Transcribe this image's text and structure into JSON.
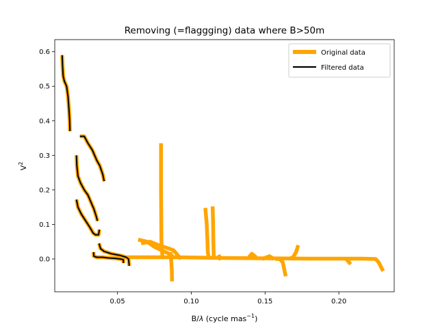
{
  "chart_data": {
    "type": "line",
    "title": "Removing (=flaggging) data where  B>50m",
    "xlabel_main": "B/",
    "xlabel_lambda": "λ",
    "xlabel_unit": " (cycle mas",
    "xlabel_exp": "−1",
    "xlabel_close": ")",
    "ylabel_main": "V",
    "ylabel_exp": "2",
    "xlim": [
      0.0075,
      0.2375
    ],
    "ylim": [
      -0.095,
      0.635
    ],
    "xticks": [
      0.05,
      0.1,
      0.15,
      0.2
    ],
    "xtick_labels": [
      "0.05",
      "0.10",
      "0.15",
      "0.20"
    ],
    "yticks": [
      0.0,
      0.1,
      0.2,
      0.3,
      0.4,
      0.5,
      0.6
    ],
    "ytick_labels": [
      "0.0",
      "0.1",
      "0.2",
      "0.3",
      "0.4",
      "0.5",
      "0.6"
    ],
    "legend_position": "top-right",
    "colors": {
      "original": "#ffa500",
      "filtered": "#000000"
    },
    "series": [
      {
        "name": "Original data",
        "segments": [
          [
            [
              0.0125,
              0.59
            ],
            [
              0.0128,
              0.56
            ],
            [
              0.0132,
              0.53
            ],
            [
              0.014,
              0.515
            ],
            [
              0.0155,
              0.5
            ],
            [
              0.0165,
              0.47
            ],
            [
              0.0172,
              0.43
            ],
            [
              0.0176,
              0.4
            ],
            [
              0.0178,
              0.37
            ]
          ],
          [
            [
              0.0245,
              0.355
            ],
            [
              0.0275,
              0.355
            ],
            [
              0.03,
              0.335
            ],
            [
              0.033,
              0.315
            ],
            [
              0.036,
              0.285
            ],
            [
              0.038,
              0.27
            ],
            [
              0.04,
              0.245
            ],
            [
              0.041,
              0.225
            ]
          ],
          [
            [
              0.0222,
              0.3
            ],
            [
              0.0225,
              0.27
            ],
            [
              0.0232,
              0.24
            ],
            [
              0.025,
              0.22
            ],
            [
              0.0275,
              0.2
            ],
            [
              0.03,
              0.185
            ],
            [
              0.032,
              0.165
            ],
            [
              0.034,
              0.145
            ],
            [
              0.0355,
              0.125
            ],
            [
              0.0365,
              0.11
            ]
          ],
          [
            [
              0.0222,
              0.172
            ],
            [
              0.0232,
              0.15
            ],
            [
              0.0255,
              0.13
            ],
            [
              0.0285,
              0.11
            ],
            [
              0.0315,
              0.09
            ],
            [
              0.0335,
              0.075
            ],
            [
              0.035,
              0.07
            ],
            [
              0.0372,
              0.07
            ],
            [
              0.0378,
              0.085
            ]
          ],
          [
            [
              0.0375,
              0.045
            ],
            [
              0.0385,
              0.03
            ],
            [
              0.041,
              0.022
            ],
            [
              0.046,
              0.015
            ],
            [
              0.052,
              0.01
            ],
            [
              0.056,
              0.005
            ],
            [
              0.0575,
              0.0
            ],
            [
              0.058,
              -0.02
            ]
          ],
          [
            [
              0.0338,
              0.02
            ],
            [
              0.034,
              0.008
            ],
            [
              0.036,
              0.005
            ],
            [
              0.04,
              0.005
            ],
            [
              0.044,
              0.003
            ],
            [
              0.048,
              0.002
            ],
            [
              0.052,
              0.0
            ],
            [
              0.054,
              -0.002
            ],
            [
              0.054,
              -0.012
            ]
          ],
          [
            [
              0.05,
              0.005
            ],
            [
              0.07,
              0.005
            ],
            [
              0.09,
              0.005
            ],
            [
              0.12,
              0.003
            ],
            [
              0.15,
              0.002
            ],
            [
              0.18,
              0.001
            ],
            [
              0.2,
              0.001
            ],
            [
              0.215,
              0.001
            ],
            [
              0.225,
              0.0
            ],
            [
              0.227,
              -0.01
            ],
            [
              0.23,
              -0.035
            ]
          ],
          [
            [
              0.064,
              0.056
            ],
            [
              0.07,
              0.05
            ],
            [
              0.075,
              0.035
            ],
            [
              0.08,
              0.025
            ],
            [
              0.085,
              0.015
            ],
            [
              0.088,
              0.005
            ]
          ],
          [
            [
              0.066,
              0.045
            ],
            [
              0.072,
              0.05
            ],
            [
              0.078,
              0.04
            ],
            [
              0.085,
              0.03
            ],
            [
              0.088,
              0.025
            ],
            [
              0.093,
              0.0
            ]
          ],
          [
            [
              0.0795,
              0.335
            ],
            [
              0.0795,
              0.2
            ],
            [
              0.0798,
              0.05
            ],
            [
              0.0805,
              0.003
            ]
          ],
          [
            [
              0.086,
              0.02
            ],
            [
              0.0868,
              -0.03
            ],
            [
              0.087,
              -0.065
            ]
          ],
          [
            [
              0.1095,
              0.148
            ],
            [
              0.1105,
              0.1
            ],
            [
              0.111,
              0.05
            ],
            [
              0.1112,
              0.02
            ],
            [
              0.112,
              0.0
            ]
          ],
          [
            [
              0.1145,
              0.152
            ],
            [
              0.1148,
              0.1
            ],
            [
              0.115,
              0.05
            ],
            [
              0.1152,
              0.01
            ],
            [
              0.1158,
              0.0
            ]
          ],
          [
            [
              0.1185,
              0.012
            ],
            [
              0.12,
              -0.003
            ]
          ],
          [
            [
              0.139,
              0.005
            ],
            [
              0.141,
              0.015
            ],
            [
              0.144,
              0.005
            ]
          ],
          [
            [
              0.148,
              0.0
            ],
            [
              0.153,
              0.008
            ],
            [
              0.156,
              0.0
            ]
          ],
          [
            [
              0.157,
              0.0
            ],
            [
              0.16,
              0.0
            ],
            [
              0.162,
              -0.01
            ],
            [
              0.163,
              -0.03
            ],
            [
              0.164,
              -0.05
            ]
          ],
          [
            [
              0.166,
              0.0
            ],
            [
              0.169,
              0.005
            ],
            [
              0.171,
              0.02
            ],
            [
              0.1725,
              0.04
            ]
          ],
          [
            [
              0.205,
              0.0
            ],
            [
              0.208,
              -0.015
            ]
          ]
        ]
      },
      {
        "name": "Filtered data",
        "segments": [
          [
            [
              0.0125,
              0.59
            ],
            [
              0.0128,
              0.56
            ],
            [
              0.0132,
              0.53
            ],
            [
              0.014,
              0.515
            ],
            [
              0.0155,
              0.5
            ],
            [
              0.0165,
              0.47
            ],
            [
              0.0172,
              0.43
            ],
            [
              0.0176,
              0.4
            ],
            [
              0.0178,
              0.37
            ]
          ],
          [
            [
              0.0245,
              0.355
            ],
            [
              0.0275,
              0.355
            ],
            [
              0.03,
              0.335
            ],
            [
              0.033,
              0.315
            ],
            [
              0.036,
              0.285
            ],
            [
              0.038,
              0.27
            ],
            [
              0.04,
              0.245
            ],
            [
              0.041,
              0.225
            ]
          ],
          [
            [
              0.0222,
              0.3
            ],
            [
              0.0225,
              0.27
            ],
            [
              0.0232,
              0.24
            ],
            [
              0.025,
              0.22
            ],
            [
              0.0275,
              0.2
            ],
            [
              0.03,
              0.185
            ],
            [
              0.032,
              0.165
            ],
            [
              0.034,
              0.145
            ],
            [
              0.0355,
              0.125
            ],
            [
              0.0365,
              0.11
            ]
          ],
          [
            [
              0.0222,
              0.172
            ],
            [
              0.0232,
              0.15
            ],
            [
              0.0255,
              0.13
            ],
            [
              0.0285,
              0.11
            ],
            [
              0.0315,
              0.09
            ],
            [
              0.0335,
              0.075
            ],
            [
              0.035,
              0.07
            ],
            [
              0.0372,
              0.07
            ],
            [
              0.0378,
              0.085
            ]
          ],
          [
            [
              0.0375,
              0.045
            ],
            [
              0.0385,
              0.03
            ],
            [
              0.041,
              0.022
            ],
            [
              0.046,
              0.015
            ],
            [
              0.052,
              0.01
            ],
            [
              0.056,
              0.005
            ],
            [
              0.0575,
              0.0
            ],
            [
              0.058,
              -0.02
            ]
          ],
          [
            [
              0.0338,
              0.02
            ],
            [
              0.034,
              0.008
            ],
            [
              0.036,
              0.005
            ],
            [
              0.04,
              0.005
            ],
            [
              0.044,
              0.003
            ],
            [
              0.048,
              0.002
            ],
            [
              0.052,
              0.0
            ],
            [
              0.054,
              -0.002
            ],
            [
              0.054,
              -0.012
            ]
          ]
        ]
      }
    ]
  }
}
